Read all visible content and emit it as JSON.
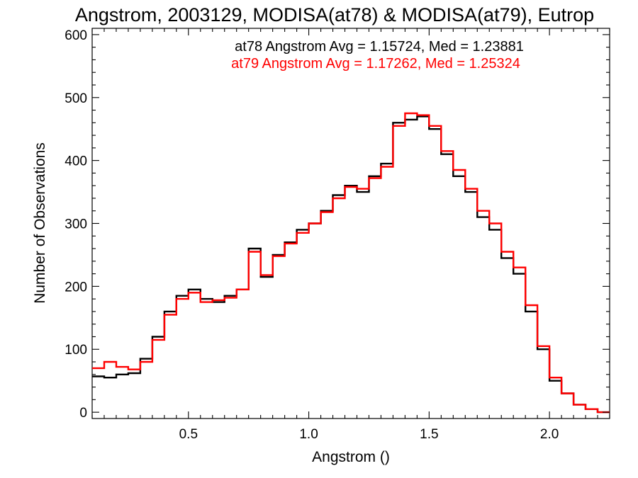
{
  "chart_data": {
    "type": "line",
    "title": "Angstrom, 2003129, MODISA(at78) & MODISA(at79), Eutrop",
    "xlabel": "Angstrom ()",
    "ylabel": "Number of Observations",
    "xlim": [
      0.1,
      2.25
    ],
    "ylim": [
      -10,
      610
    ],
    "xticks": [
      "0.5",
      "1.0",
      "1.5",
      "2.0"
    ],
    "yticks": [
      "0",
      "100",
      "200",
      "300",
      "400",
      "500",
      "600"
    ],
    "grid": false,
    "legend": "top",
    "annotations": [
      {
        "text": "at78 Angstrom Avg = 1.15724, Med = 1.23881",
        "color": "#000000"
      },
      {
        "text": "at79 Angstrom Avg = 1.17262, Med = 1.25324",
        "color": "#ff0000"
      }
    ],
    "series": [
      {
        "color": "#000000",
        "x": [
          0.1,
          0.15,
          0.2,
          0.25,
          0.3,
          0.35,
          0.4,
          0.45,
          0.5,
          0.55,
          0.6,
          0.65,
          0.7,
          0.75,
          0.8,
          0.85,
          0.9,
          0.95,
          1.0,
          1.05,
          1.1,
          1.15,
          1.2,
          1.25,
          1.3,
          1.35,
          1.4,
          1.45,
          1.5,
          1.55,
          1.6,
          1.65,
          1.7,
          1.75,
          1.8,
          1.85,
          1.9,
          1.95,
          2.0,
          2.05,
          2.1,
          2.15,
          2.2,
          2.25
        ],
        "values": [
          57,
          55,
          60,
          62,
          85,
          120,
          160,
          185,
          195,
          180,
          175,
          185,
          195,
          260,
          215,
          250,
          270,
          290,
          300,
          320,
          345,
          360,
          350,
          375,
          395,
          460,
          465,
          470,
          450,
          410,
          375,
          350,
          310,
          290,
          245,
          220,
          160,
          100,
          50,
          30,
          12,
          5,
          0,
          0
        ]
      },
      {
        "color": "#ff0000",
        "x": [
          0.1,
          0.15,
          0.2,
          0.25,
          0.3,
          0.35,
          0.4,
          0.45,
          0.5,
          0.55,
          0.6,
          0.65,
          0.7,
          0.75,
          0.8,
          0.85,
          0.9,
          0.95,
          1.0,
          1.05,
          1.1,
          1.15,
          1.2,
          1.25,
          1.3,
          1.35,
          1.4,
          1.45,
          1.5,
          1.55,
          1.6,
          1.65,
          1.7,
          1.75,
          1.8,
          1.85,
          1.9,
          1.95,
          2.0,
          2.05,
          2.1,
          2.15,
          2.2,
          2.25
        ],
        "values": [
          70,
          80,
          72,
          68,
          80,
          115,
          155,
          180,
          190,
          175,
          178,
          182,
          195,
          255,
          218,
          248,
          268,
          285,
          300,
          318,
          340,
          358,
          355,
          372,
          390,
          455,
          475,
          472,
          455,
          415,
          385,
          355,
          320,
          300,
          255,
          230,
          170,
          105,
          55,
          30,
          12,
          5,
          0,
          0
        ]
      }
    ]
  }
}
